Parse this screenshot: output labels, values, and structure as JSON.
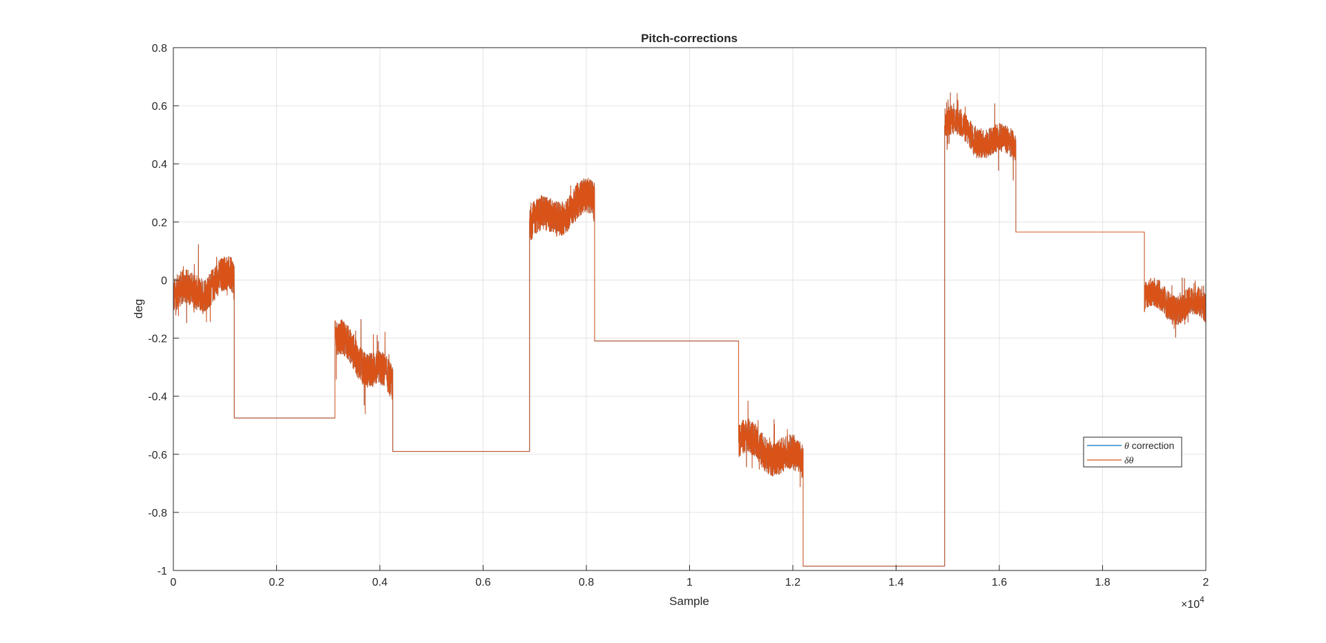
{
  "chart_data": {
    "type": "line",
    "title": "Pitch-corrections",
    "xlabel": "Sample",
    "ylabel": "deg",
    "x_exponent_label": "×10",
    "x_exponent_power": "4",
    "xlim": [
      0,
      2
    ],
    "ylim": [
      -1,
      0.8
    ],
    "x_ticks": [
      0,
      0.2,
      0.4,
      0.6,
      0.8,
      1,
      1.2,
      1.4,
      1.6,
      1.8,
      2
    ],
    "x_tick_labels": [
      "0",
      "0.2",
      "0.4",
      "0.6",
      "0.8",
      "1",
      "1.2",
      "1.4",
      "1.6",
      "1.8",
      "2"
    ],
    "y_ticks": [
      -1,
      -0.8,
      -0.6,
      -0.4,
      -0.2,
      0,
      0.2,
      0.4,
      0.6,
      0.8
    ],
    "y_tick_labels": [
      "-1",
      "-0.8",
      "-0.6",
      "-0.4",
      "-0.2",
      "0",
      "0.2",
      "0.4",
      "0.6",
      "0.8"
    ],
    "grid": true,
    "legend_position": "lower-right",
    "series": [
      {
        "name": "θ correction",
        "legend_symbol": "θ",
        "legend_rest": " correction",
        "color": "#0072BD",
        "segments": [
          {
            "type": "noisy",
            "x0": 0.0,
            "x1": 0.118,
            "y0": -0.06,
            "y1": 0.01,
            "amp": 0.06,
            "spike": 0.13
          },
          {
            "type": "flat",
            "x0": 0.118,
            "x1": 0.313,
            "y": -0.475
          },
          {
            "type": "noisy",
            "x0": 0.313,
            "x1": 0.425,
            "y0": -0.2,
            "y1": -0.36,
            "amp": 0.06,
            "spike": 0.13
          },
          {
            "type": "flat",
            "x0": 0.425,
            "x1": 0.69,
            "y": -0.59
          },
          {
            "type": "noisy",
            "x0": 0.69,
            "x1": 0.816,
            "y0": 0.19,
            "y1": 0.28,
            "amp": 0.06,
            "spike": 0.08
          },
          {
            "type": "flat",
            "x0": 0.816,
            "x1": 1.095,
            "y": -0.21
          },
          {
            "type": "noisy",
            "x0": 1.095,
            "x1": 1.22,
            "y0": -0.55,
            "y1": -0.63,
            "amp": 0.06,
            "spike": 0.1
          },
          {
            "type": "flat",
            "x0": 1.22,
            "x1": 1.494,
            "y": -0.985
          },
          {
            "type": "noisy",
            "x0": 1.494,
            "x1": 1.632,
            "y0": 0.54,
            "y1": 0.45,
            "amp": 0.05,
            "spike": 0.08
          },
          {
            "type": "flat",
            "x0": 1.632,
            "x1": 1.881,
            "y": 0.165
          },
          {
            "type": "noisy",
            "x0": 1.881,
            "x1": 2.0,
            "y0": -0.06,
            "y1": -0.1,
            "amp": 0.05,
            "spike": 0.1
          }
        ]
      },
      {
        "name": "δθ",
        "legend_symbol": "δθ",
        "legend_rest": "",
        "color": "#D95319",
        "same_as_previous": true
      }
    ]
  }
}
